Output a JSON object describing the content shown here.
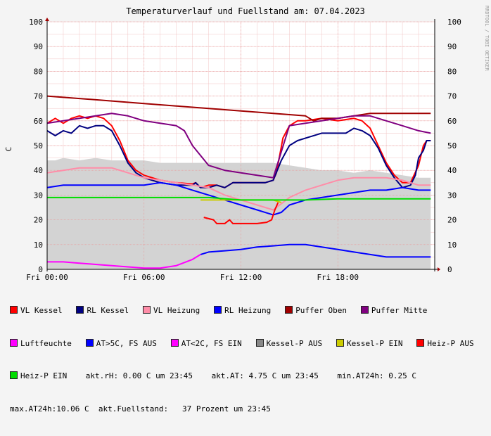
{
  "chart_data": {
    "type": "line",
    "title": "Temperaturverlauf und Fuellstand am: 07.04.2023",
    "side_label": "RRDTOOL / TOBI OETIKER",
    "ylabel": "C",
    "ylim": [
      0,
      100
    ],
    "yticks": [
      0,
      10,
      20,
      30,
      40,
      50,
      60,
      70,
      80,
      90,
      100
    ],
    "xlim": [
      0,
      24
    ],
    "xticks": [
      {
        "h": 0,
        "label": "Fri 00:00"
      },
      {
        "h": 6,
        "label": "Fri 06:00"
      },
      {
        "h": 12,
        "label": "Fri 12:00"
      },
      {
        "h": 18,
        "label": "Fri 18:00"
      }
    ],
    "grid": true,
    "fuellstand_area": [
      [
        0,
        44
      ],
      [
        0.5,
        44
      ],
      [
        1,
        45
      ],
      [
        2,
        44
      ],
      [
        3,
        45
      ],
      [
        4,
        44
      ],
      [
        5,
        44
      ],
      [
        6,
        44
      ],
      [
        7,
        43
      ],
      [
        8,
        43
      ],
      [
        9,
        43
      ],
      [
        10,
        43
      ],
      [
        11,
        43
      ],
      [
        12,
        43
      ],
      [
        13,
        43
      ],
      [
        13.5,
        43
      ],
      [
        14,
        43
      ],
      [
        15,
        42
      ],
      [
        16,
        41
      ],
      [
        17,
        40
      ],
      [
        18,
        40
      ],
      [
        19,
        39
      ],
      [
        20,
        40
      ],
      [
        21,
        39
      ],
      [
        22,
        38
      ],
      [
        23,
        37
      ],
      [
        23.75,
        37
      ]
    ],
    "series": [
      {
        "name": "VL Kessel",
        "color": "#ff0000",
        "width": 2,
        "values": [
          [
            0,
            59
          ],
          [
            0.5,
            61
          ],
          [
            1,
            59
          ],
          [
            1.5,
            61
          ],
          [
            2,
            62
          ],
          [
            2.5,
            61
          ],
          [
            3,
            62
          ],
          [
            3.5,
            61
          ],
          [
            4,
            58
          ],
          [
            4.5,
            52
          ],
          [
            5,
            44
          ],
          [
            5.5,
            40
          ],
          [
            6,
            38
          ],
          [
            7,
            36
          ],
          [
            8,
            35
          ],
          [
            9,
            34.5
          ],
          [
            9.2,
            35
          ],
          [
            9.5,
            33
          ],
          [
            10,
            34
          ],
          [
            10.5,
            34
          ],
          [
            11,
            33
          ],
          [
            11.5,
            35
          ],
          [
            12,
            35
          ],
          [
            13,
            35
          ],
          [
            13.5,
            35
          ],
          [
            14,
            36
          ],
          [
            14.2,
            39
          ],
          [
            14.4,
            46
          ],
          [
            14.6,
            53
          ],
          [
            15,
            58
          ],
          [
            15.5,
            60
          ],
          [
            16,
            60
          ],
          [
            17,
            61
          ],
          [
            18,
            60
          ],
          [
            19,
            61
          ],
          [
            19.5,
            60
          ],
          [
            20,
            57
          ],
          [
            20.5,
            50
          ],
          [
            21,
            43
          ],
          [
            21.5,
            38
          ],
          [
            22,
            35
          ],
          [
            22.5,
            35
          ],
          [
            23,
            42
          ],
          [
            23.3,
            50
          ],
          [
            23.5,
            52
          ],
          [
            23.75,
            52
          ]
        ]
      },
      {
        "name": "RL Kessel",
        "color": "#000080",
        "width": 2,
        "values": [
          [
            0,
            56
          ],
          [
            0.5,
            54
          ],
          [
            1,
            56
          ],
          [
            1.5,
            55
          ],
          [
            2,
            58
          ],
          [
            2.5,
            57
          ],
          [
            3,
            58
          ],
          [
            3.5,
            58
          ],
          [
            4,
            56
          ],
          [
            4.5,
            50
          ],
          [
            5,
            43
          ],
          [
            5.5,
            39
          ],
          [
            6,
            37
          ],
          [
            7,
            35
          ],
          [
            8,
            34
          ],
          [
            9,
            34
          ],
          [
            9.2,
            35
          ],
          [
            9.5,
            33
          ],
          [
            10,
            33
          ],
          [
            10.5,
            34
          ],
          [
            11,
            33
          ],
          [
            11.5,
            35
          ],
          [
            12,
            35
          ],
          [
            13,
            35
          ],
          [
            13.5,
            35
          ],
          [
            14,
            36
          ],
          [
            14.5,
            44
          ],
          [
            15,
            50
          ],
          [
            15.5,
            52
          ],
          [
            16,
            53
          ],
          [
            17,
            55
          ],
          [
            18,
            55
          ],
          [
            18.5,
            55
          ],
          [
            19,
            57
          ],
          [
            19.5,
            56
          ],
          [
            20,
            54
          ],
          [
            20.5,
            49
          ],
          [
            21,
            42
          ],
          [
            21.5,
            37
          ],
          [
            22,
            33
          ],
          [
            22.5,
            34
          ],
          [
            22.8,
            38
          ],
          [
            23,
            45
          ],
          [
            23.3,
            48
          ],
          [
            23.5,
            52
          ],
          [
            23.75,
            52
          ]
        ]
      },
      {
        "name": "VL Heizung",
        "color": "#ff8da8",
        "width": 2,
        "values": [
          [
            0,
            39
          ],
          [
            1,
            40
          ],
          [
            2,
            41
          ],
          [
            3,
            41
          ],
          [
            4,
            41
          ],
          [
            5,
            39
          ],
          [
            6,
            37
          ],
          [
            7,
            36
          ],
          [
            8,
            35
          ],
          [
            9,
            34
          ],
          [
            10,
            33
          ],
          [
            11,
            30
          ],
          [
            12,
            28
          ],
          [
            13,
            26
          ],
          [
            14,
            24
          ],
          [
            15,
            29
          ],
          [
            16,
            32
          ],
          [
            17,
            34
          ],
          [
            18,
            36
          ],
          [
            19,
            37
          ],
          [
            20,
            37
          ],
          [
            21,
            37
          ],
          [
            22,
            36
          ],
          [
            23,
            34
          ],
          [
            23.75,
            34
          ]
        ]
      },
      {
        "name": "RL Heizung",
        "color": "#0000ff",
        "width": 2,
        "values": [
          [
            0,
            33
          ],
          [
            1,
            34
          ],
          [
            2,
            34
          ],
          [
            3,
            34
          ],
          [
            4,
            34
          ],
          [
            5,
            34
          ],
          [
            6,
            34
          ],
          [
            7,
            35
          ],
          [
            8,
            34
          ],
          [
            9,
            32
          ],
          [
            10,
            30
          ],
          [
            11,
            28
          ],
          [
            12,
            26
          ],
          [
            13,
            24
          ],
          [
            14,
            22
          ],
          [
            14.5,
            23
          ],
          [
            15,
            26
          ],
          [
            16,
            28
          ],
          [
            17,
            29
          ],
          [
            18,
            30
          ],
          [
            19,
            31
          ],
          [
            20,
            32
          ],
          [
            21,
            32
          ],
          [
            22,
            33
          ],
          [
            23,
            32
          ],
          [
            23.75,
            32
          ]
        ]
      },
      {
        "name": "Puffer Oben",
        "color": "#a00000",
        "width": 2,
        "values": [
          [
            0,
            70
          ],
          [
            2,
            69
          ],
          [
            4,
            68
          ],
          [
            6,
            67
          ],
          [
            8,
            66
          ],
          [
            10,
            65
          ],
          [
            12,
            64
          ],
          [
            14,
            63
          ],
          [
            16,
            62
          ],
          [
            16.5,
            60
          ],
          [
            17,
            61
          ],
          [
            18,
            61
          ],
          [
            19,
            62
          ],
          [
            20,
            63
          ],
          [
            21,
            63
          ],
          [
            22,
            63
          ],
          [
            23,
            63
          ],
          [
            23.75,
            63
          ]
        ]
      },
      {
        "name": "Puffer Mitte",
        "color": "#800080",
        "width": 2,
        "values": [
          [
            0,
            59
          ],
          [
            1,
            60
          ],
          [
            2,
            61
          ],
          [
            3,
            62
          ],
          [
            4,
            63
          ],
          [
            5,
            62
          ],
          [
            6,
            60
          ],
          [
            7,
            59
          ],
          [
            8,
            58
          ],
          [
            8.5,
            56
          ],
          [
            9,
            50
          ],
          [
            9.5,
            46
          ],
          [
            10,
            42
          ],
          [
            11,
            40
          ],
          [
            12,
            39
          ],
          [
            13,
            38
          ],
          [
            14,
            37
          ],
          [
            15,
            58
          ],
          [
            16,
            59
          ],
          [
            17,
            60
          ],
          [
            18,
            61
          ],
          [
            19,
            62
          ],
          [
            20,
            62
          ],
          [
            21,
            60
          ],
          [
            22,
            58
          ],
          [
            23,
            56
          ],
          [
            23.75,
            55
          ]
        ]
      },
      {
        "name": "Kessel-P EIN",
        "color": "#cccc00",
        "width": 2,
        "values": [
          [
            9.5,
            28
          ],
          [
            10,
            28
          ],
          [
            11,
            28
          ],
          [
            12,
            28
          ],
          [
            13,
            28
          ],
          [
            14,
            28
          ],
          [
            14.5,
            27
          ]
        ]
      },
      {
        "name": "Heiz-P AUS",
        "color": "#ff0000",
        "width": 2,
        "values": [
          [
            9.7,
            21
          ],
          [
            10.3,
            20
          ],
          [
            10.5,
            18.5
          ],
          [
            11,
            18.5
          ],
          [
            11.3,
            20
          ],
          [
            11.5,
            18.5
          ],
          [
            12,
            18.5
          ],
          [
            13,
            18.5
          ],
          [
            13.6,
            19
          ],
          [
            13.9,
            20
          ],
          [
            14.1,
            24
          ],
          [
            14.3,
            27
          ]
        ]
      },
      {
        "name": "Heiz-P EIN",
        "color": "#00dd00",
        "width": 2,
        "values": [
          [
            0,
            29
          ],
          [
            2,
            29
          ],
          [
            4,
            29
          ],
          [
            6,
            29
          ],
          [
            8,
            29
          ],
          [
            10,
            29
          ],
          [
            12,
            28
          ],
          [
            14,
            28
          ],
          [
            16,
            28
          ],
          [
            18,
            28.5
          ],
          [
            20,
            28.5
          ],
          [
            22,
            28.5
          ],
          [
            23.75,
            28.5
          ]
        ]
      },
      {
        "name": "AT>5C, FS AUS",
        "color": "#0000ff",
        "width": 2,
        "values": [
          [
            9.5,
            6
          ],
          [
            10,
            7
          ],
          [
            11,
            7.5
          ],
          [
            12,
            8
          ],
          [
            13,
            9
          ],
          [
            14,
            9.5
          ],
          [
            15,
            10
          ],
          [
            16,
            10
          ],
          [
            17,
            9
          ],
          [
            18,
            8
          ],
          [
            19,
            7
          ],
          [
            20,
            6
          ],
          [
            21,
            5
          ],
          [
            22,
            5
          ],
          [
            23,
            5
          ],
          [
            23.75,
            5
          ]
        ]
      },
      {
        "name": "Luftfeuchte",
        "color": "#ff00ff",
        "width": 2,
        "values": [
          [
            0,
            3
          ],
          [
            1,
            3
          ],
          [
            2,
            2.5
          ],
          [
            3,
            2
          ],
          [
            4,
            1.5
          ],
          [
            5,
            1
          ],
          [
            6,
            0.5
          ],
          [
            7,
            0.5
          ],
          [
            8,
            1.5
          ],
          [
            9,
            4
          ],
          [
            9.5,
            6
          ]
        ]
      }
    ],
    "legend": [
      [
        {
          "name": "VL Kessel",
          "color": "#ff0000"
        },
        {
          "name": "RL Kessel",
          "color": "#000080"
        },
        {
          "name": "VL Heizung",
          "color": "#ff8da8"
        },
        {
          "name": "RL Heizung",
          "color": "#0000ff"
        },
        {
          "name": "Puffer Oben",
          "color": "#a00000"
        },
        {
          "name": "Puffer Mitte",
          "color": "#800080"
        }
      ],
      [
        {
          "name": "Luftfeuchte",
          "color": "#ff00ff"
        },
        {
          "name": "AT>5C, FS AUS",
          "color": "#0000ff"
        },
        {
          "name": "AT<2C, FS EIN",
          "color": "#ff00ff"
        },
        {
          "name": "Kessel-P AUS",
          "color": "#888888"
        },
        {
          "name": "Kessel-P EIN",
          "color": "#cccc00"
        },
        {
          "name": "Heiz-P AUS",
          "color": "#ff0000"
        }
      ],
      [
        {
          "name": "Heiz-P EIN",
          "color": "#00dd00"
        }
      ]
    ],
    "stats": {
      "rh": "akt.rH: 0.00 C um 23:45",
      "at": "akt.AT: 4.75 C um 23:45",
      "min": "min.AT24h: 0.25 C",
      "max": "max.AT24h:10.06 C",
      "fuellstand": "akt.Fuellstand:   37 Prozent um 23:45"
    }
  }
}
